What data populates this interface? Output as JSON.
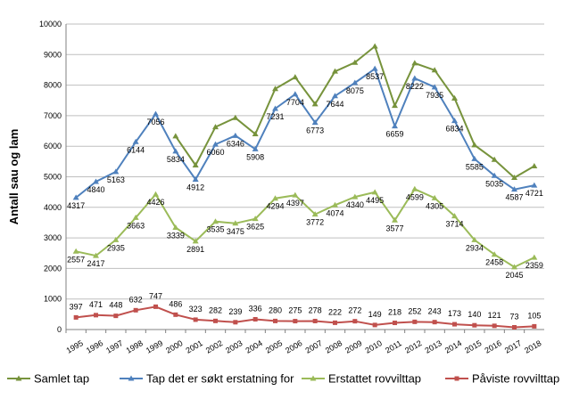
{
  "chart_data": {
    "type": "line",
    "ylabel": "Antall sau og lam",
    "xlabel": "",
    "ylim": [
      0,
      10000
    ],
    "yticks": [
      0,
      1000,
      2000,
      3000,
      4000,
      5000,
      6000,
      7000,
      8000,
      9000,
      10000
    ],
    "grid": true,
    "legend_position": "bottom",
    "categories": [
      "1995",
      "1996",
      "1997",
      "1998",
      "1999",
      "2000",
      "2001",
      "2002",
      "2003",
      "2004",
      "2005",
      "2006",
      "2007",
      "2008",
      "2009",
      "2010",
      "2011",
      "2012",
      "2013",
      "2014",
      "2015",
      "2016",
      "2017",
      "2018"
    ],
    "series": [
      {
        "name": "Samlet tap",
        "color": "#77933C",
        "marker": "triangle",
        "labels": false,
        "values": [
          null,
          null,
          null,
          null,
          null,
          6330,
          5380,
          6630,
          6930,
          6400,
          7880,
          8260,
          7380,
          8450,
          8740,
          9270,
          7330,
          8720,
          8490,
          7570,
          6040,
          5560,
          4970,
          5350
        ]
      },
      {
        "name": "Tap det er søkt erstatning for",
        "color": "#4F81BD",
        "marker": "triangle",
        "labels": true,
        "values": [
          4317,
          4840,
          5163,
          6144,
          7056,
          5834,
          4912,
          6060,
          6346,
          5908,
          7231,
          7704,
          6773,
          7644,
          8075,
          8537,
          6659,
          8222,
          7935,
          6834,
          5585,
          5035,
          4587,
          4721
        ]
      },
      {
        "name": "Erstattet rovvilttap",
        "color": "#9BBB59",
        "marker": "triangle",
        "labels": true,
        "values": [
          2557,
          2417,
          2935,
          3663,
          4426,
          3339,
          2891,
          3535,
          3475,
          3625,
          4294,
          4397,
          3772,
          4074,
          4340,
          4495,
          3577,
          4599,
          4305,
          3714,
          2934,
          2458,
          2045,
          2359
        ]
      },
      {
        "name": "Påviste rovvilttap",
        "color": "#C0504D",
        "marker": "square",
        "labels": true,
        "values": [
          397,
          471,
          448,
          632,
          747,
          486,
          323,
          282,
          239,
          336,
          280,
          275,
          278,
          222,
          272,
          149,
          218,
          252,
          243,
          173,
          140,
          121,
          73,
          105
        ]
      }
    ]
  }
}
